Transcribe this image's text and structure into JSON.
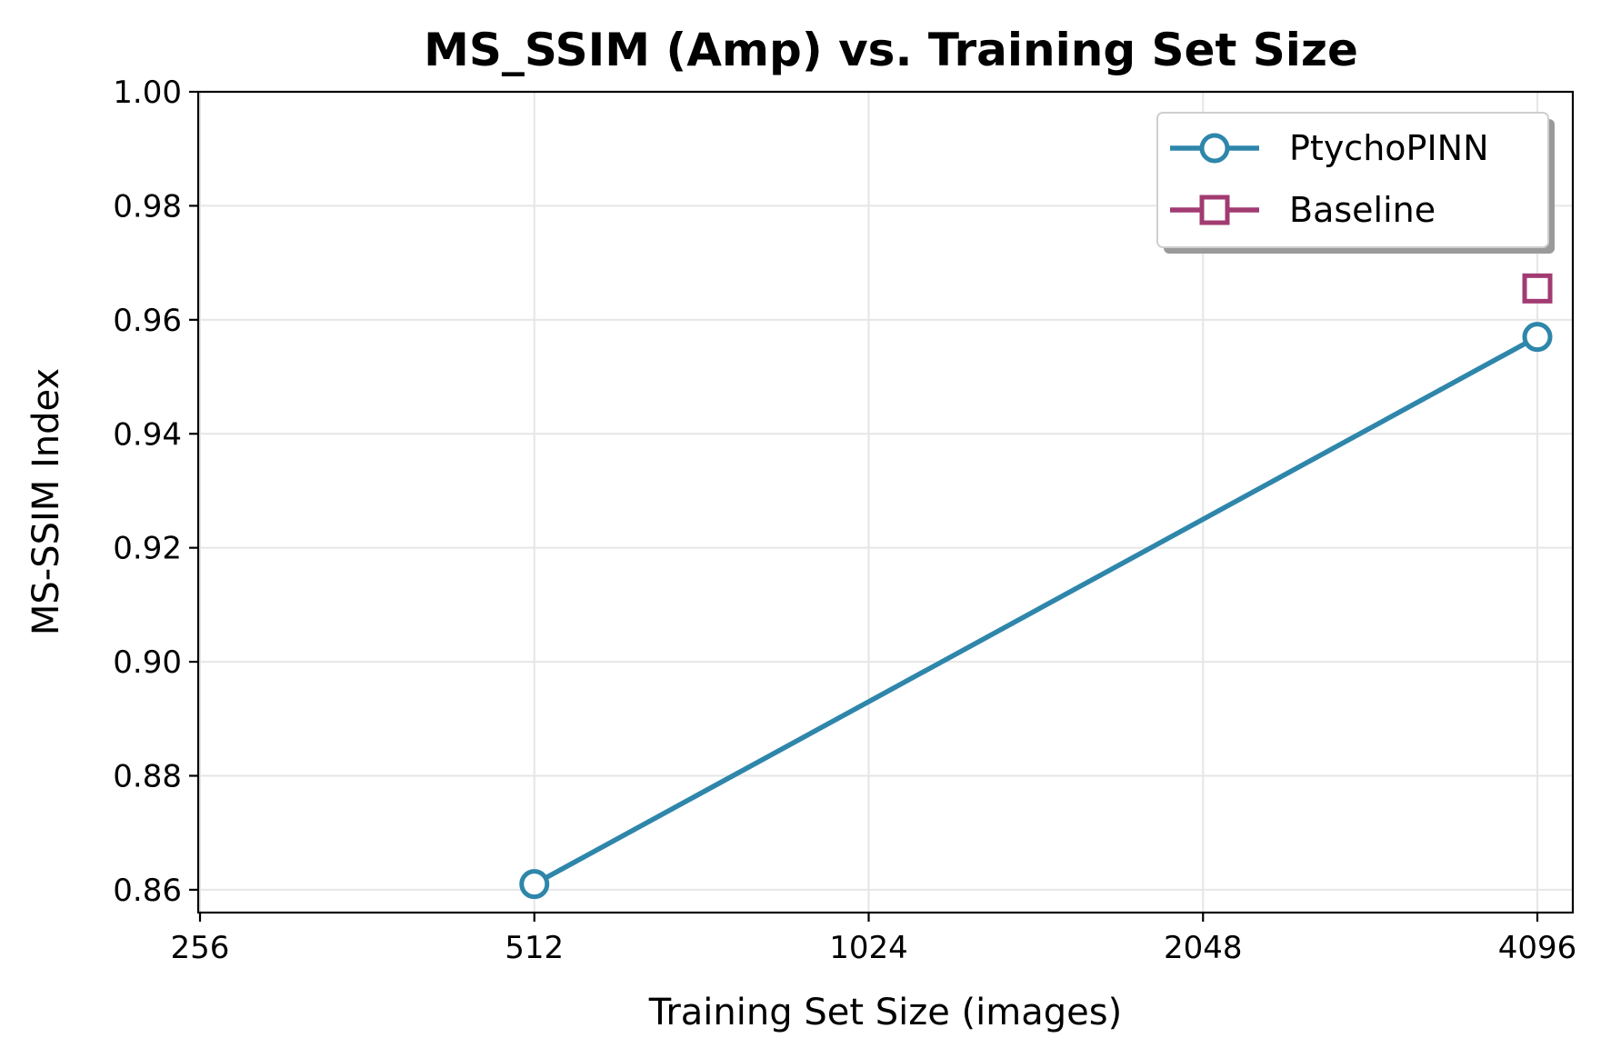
{
  "chart_data": {
    "type": "line",
    "title": "MS_SSIM (Amp) vs. Training Set Size",
    "xlabel": "Training Set Size (images)",
    "ylabel": "MS-SSIM Index",
    "x_scale": "log2",
    "xlim": [
      256,
      4096
    ],
    "ylim": [
      0.856,
      1.0
    ],
    "x_ticks": [
      256,
      512,
      1024,
      2048,
      4096
    ],
    "x_tick_labels": [
      "256",
      "512",
      "1024",
      "2048",
      "4096"
    ],
    "y_ticks": [
      0.86,
      0.88,
      0.9,
      0.92,
      0.94,
      0.96,
      0.98,
      1.0
    ],
    "y_tick_labels": [
      "0.86",
      "0.88",
      "0.90",
      "0.92",
      "0.94",
      "0.96",
      "0.98",
      "1.00"
    ],
    "grid": true,
    "legend_position": "top-right",
    "series": [
      {
        "name": "PtychoPINN",
        "marker": "circle",
        "color": "#2E86AB",
        "points": [
          {
            "x": 512,
            "y": 0.861
          },
          {
            "x": 4096,
            "y": 0.957
          }
        ]
      },
      {
        "name": "Baseline",
        "marker": "square",
        "color": "#A23B72",
        "points": [
          {
            "x": 4096,
            "y": 0.9655
          }
        ]
      }
    ]
  }
}
